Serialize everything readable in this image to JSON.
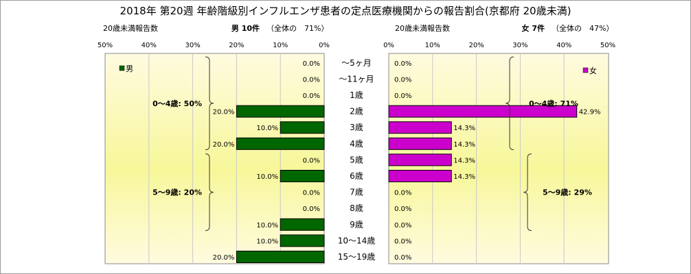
{
  "title": "2018年 第20週 年齢階級別インフルエンザ患者の定点医療機関からの報告割合(京都府 20歳未満)",
  "colors": {
    "male": "#006600",
    "female": "#cc00cc",
    "plot_edge": "#fffbe0",
    "plot_center": "#f7f79a"
  },
  "chart_data": [
    {
      "type": "bar",
      "orientation": "horizontal",
      "direction": "right-to-left",
      "subtitle_left": "20歳未満報告数",
      "header": "男 10件",
      "share": "（全体の　71%）",
      "legend": "男",
      "legend_position": "top-left",
      "xlim": [
        0,
        50
      ],
      "ticks": [
        "0%",
        "10%",
        "20%",
        "30%",
        "40%",
        "50%"
      ],
      "categories": [
        "～5ヶ月",
        "～11ヶ月",
        "1歳",
        "2歳",
        "3歳",
        "4歳",
        "5歳",
        "6歳",
        "7歳",
        "8歳",
        "9歳",
        "10～14歳",
        "15～19歳"
      ],
      "values": [
        0,
        0,
        0,
        20,
        10,
        20,
        0,
        10,
        0,
        0,
        10,
        10,
        20
      ],
      "value_labels": [
        "0.0%",
        "0.0%",
        "0.0%",
        "20.0%",
        "10.0%",
        "20.0%",
        "0.0%",
        "10.0%",
        "0.0%",
        "0.0%",
        "10.0%",
        "10.0%",
        "20.0%"
      ],
      "groups": [
        {
          "label": "0～4歳: 50%",
          "from": 0,
          "to": 5
        },
        {
          "label": "5～9歳: 20%",
          "from": 6,
          "to": 10
        }
      ]
    },
    {
      "type": "bar",
      "orientation": "horizontal",
      "direction": "left-to-right",
      "subtitle_left": "20歳未満報告数",
      "header": "女 7件",
      "share": "（全体の　47%）",
      "legend": "女",
      "legend_position": "top-right",
      "xlim": [
        0,
        50
      ],
      "ticks": [
        "0%",
        "10%",
        "20%",
        "30%",
        "40%",
        "50%"
      ],
      "categories": [
        "～5ヶ月",
        "～11ヶ月",
        "1歳",
        "2歳",
        "3歳",
        "4歳",
        "5歳",
        "6歳",
        "7歳",
        "8歳",
        "9歳",
        "10～14歳",
        "15～19歳"
      ],
      "values": [
        0,
        0,
        0,
        42.9,
        14.3,
        14.3,
        14.3,
        14.3,
        0,
        0,
        0,
        0,
        0
      ],
      "value_labels": [
        "0.0%",
        "0.0%",
        "0.0%",
        "42.9%",
        "14.3%",
        "14.3%",
        "14.3%",
        "14.3%",
        "0.0%",
        "0.0%",
        "0.0%",
        "0.0%",
        "0.0%"
      ],
      "groups": [
        {
          "label": "0～4歳: 71%",
          "from": 0,
          "to": 5
        },
        {
          "label": "5～9歳: 29%",
          "from": 6,
          "to": 10
        }
      ]
    }
  ]
}
